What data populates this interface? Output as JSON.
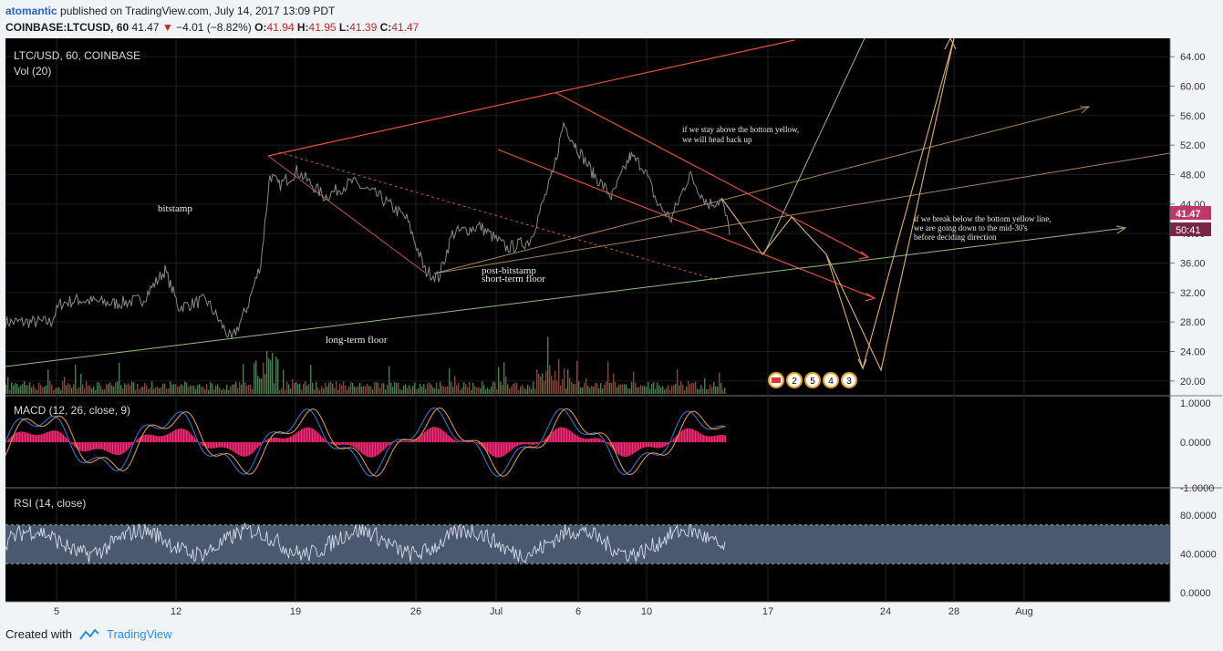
{
  "header": {
    "author": "atomantic",
    "published": "published on TradingView.com, July 14, 2017 13:09 PDT"
  },
  "symbol_row": {
    "symbol": "COINBASE:LTCUSD, 60",
    "last": "41.47",
    "change": "−4.01 (−8.82%)",
    "o_label": "O:",
    "o_value": "41.94",
    "h_label": "H:",
    "h_value": "41.95",
    "l_label": "L:",
    "l_value": "41.39",
    "c_label": "C:",
    "c_value": "41.47"
  },
  "footer": {
    "created_with": "Created with",
    "brand": "TradingView"
  },
  "chart_data": {
    "type": "line",
    "title": "LTC/USD, 60, COINBASE",
    "volume_label": "Vol (20)",
    "x_tick_labels": [
      "5",
      "12",
      "19",
      "26",
      "Jul",
      "6",
      "10",
      "17",
      "24",
      "28",
      "Aug"
    ],
    "price_axis": {
      "ticks": [
        "64.00",
        "60.00",
        "56.00",
        "52.00",
        "48.00",
        "44.00",
        "40.00",
        "36.00",
        "32.00",
        "28.00",
        "24.00",
        "20.00"
      ],
      "ylim": [
        18,
        66
      ],
      "last_price_tag": "41.47",
      "countdown_tag": "50:41"
    },
    "price_series": {
      "name": "LTC/USD",
      "anchors": [
        [
          0,
          28
        ],
        [
          50,
          28
        ],
        [
          60,
          30.5
        ],
        [
          80,
          31
        ],
        [
          120,
          30.5
        ],
        [
          150,
          31
        ],
        [
          175,
          35
        ],
        [
          190,
          30
        ],
        [
          220,
          31
        ],
        [
          248,
          25.5
        ],
        [
          265,
          30
        ],
        [
          280,
          36
        ],
        [
          290,
          48
        ],
        [
          300,
          46.5
        ],
        [
          320,
          48.5
        ],
        [
          350,
          45
        ],
        [
          380,
          47
        ],
        [
          410,
          45
        ],
        [
          440,
          42
        ],
        [
          460,
          35
        ],
        [
          475,
          34
        ],
        [
          490,
          40
        ],
        [
          520,
          41
        ],
        [
          550,
          38
        ],
        [
          575,
          39
        ],
        [
          600,
          48
        ],
        [
          612,
          55
        ],
        [
          625,
          52
        ],
        [
          645,
          48
        ],
        [
          665,
          45
        ],
        [
          685,
          50.5
        ],
        [
          700,
          49
        ],
        [
          715,
          44
        ],
        [
          730,
          42
        ],
        [
          750,
          48
        ],
        [
          770,
          44
        ],
        [
          785,
          44.5
        ],
        [
          795,
          40
        ]
      ]
    },
    "annotations": [
      {
        "text": "bitstamp"
      },
      {
        "text": "post-bitstamp"
      },
      {
        "text": "short-term floor"
      },
      {
        "text": "long-term floor"
      },
      {
        "text": "if we stay above the bottom yellow,"
      },
      {
        "text": "we will head back up"
      },
      {
        "text": "if we break below the bottom yellow line,"
      },
      {
        "text": "we are going down to the mid-30's"
      },
      {
        "text": "before deciding direction"
      }
    ],
    "event_badges": [
      "2",
      "5",
      "4",
      "3"
    ],
    "macd": {
      "label": "MACD (12, 26, close, 9)",
      "ticks": [
        "1.0000",
        "0.0000",
        "-1.0000"
      ],
      "ylim": [
        -1,
        1
      ]
    },
    "rsi": {
      "label": "RSI (14, close)",
      "ticks": [
        "80.0000",
        "40.0000",
        "0.0000"
      ],
      "band": [
        30,
        70
      ],
      "ylim": [
        0,
        100
      ]
    },
    "colors": {
      "background": "#000000",
      "price": "#8a8a8a",
      "channel": "#e8503a",
      "yellow": "#e0b070",
      "green": "#8ec07c",
      "macd_hist": "#ff2a7a",
      "macd_line": "#2f7fe0",
      "signal_line": "#f0a040",
      "rsi_band": "#4a5870"
    }
  }
}
